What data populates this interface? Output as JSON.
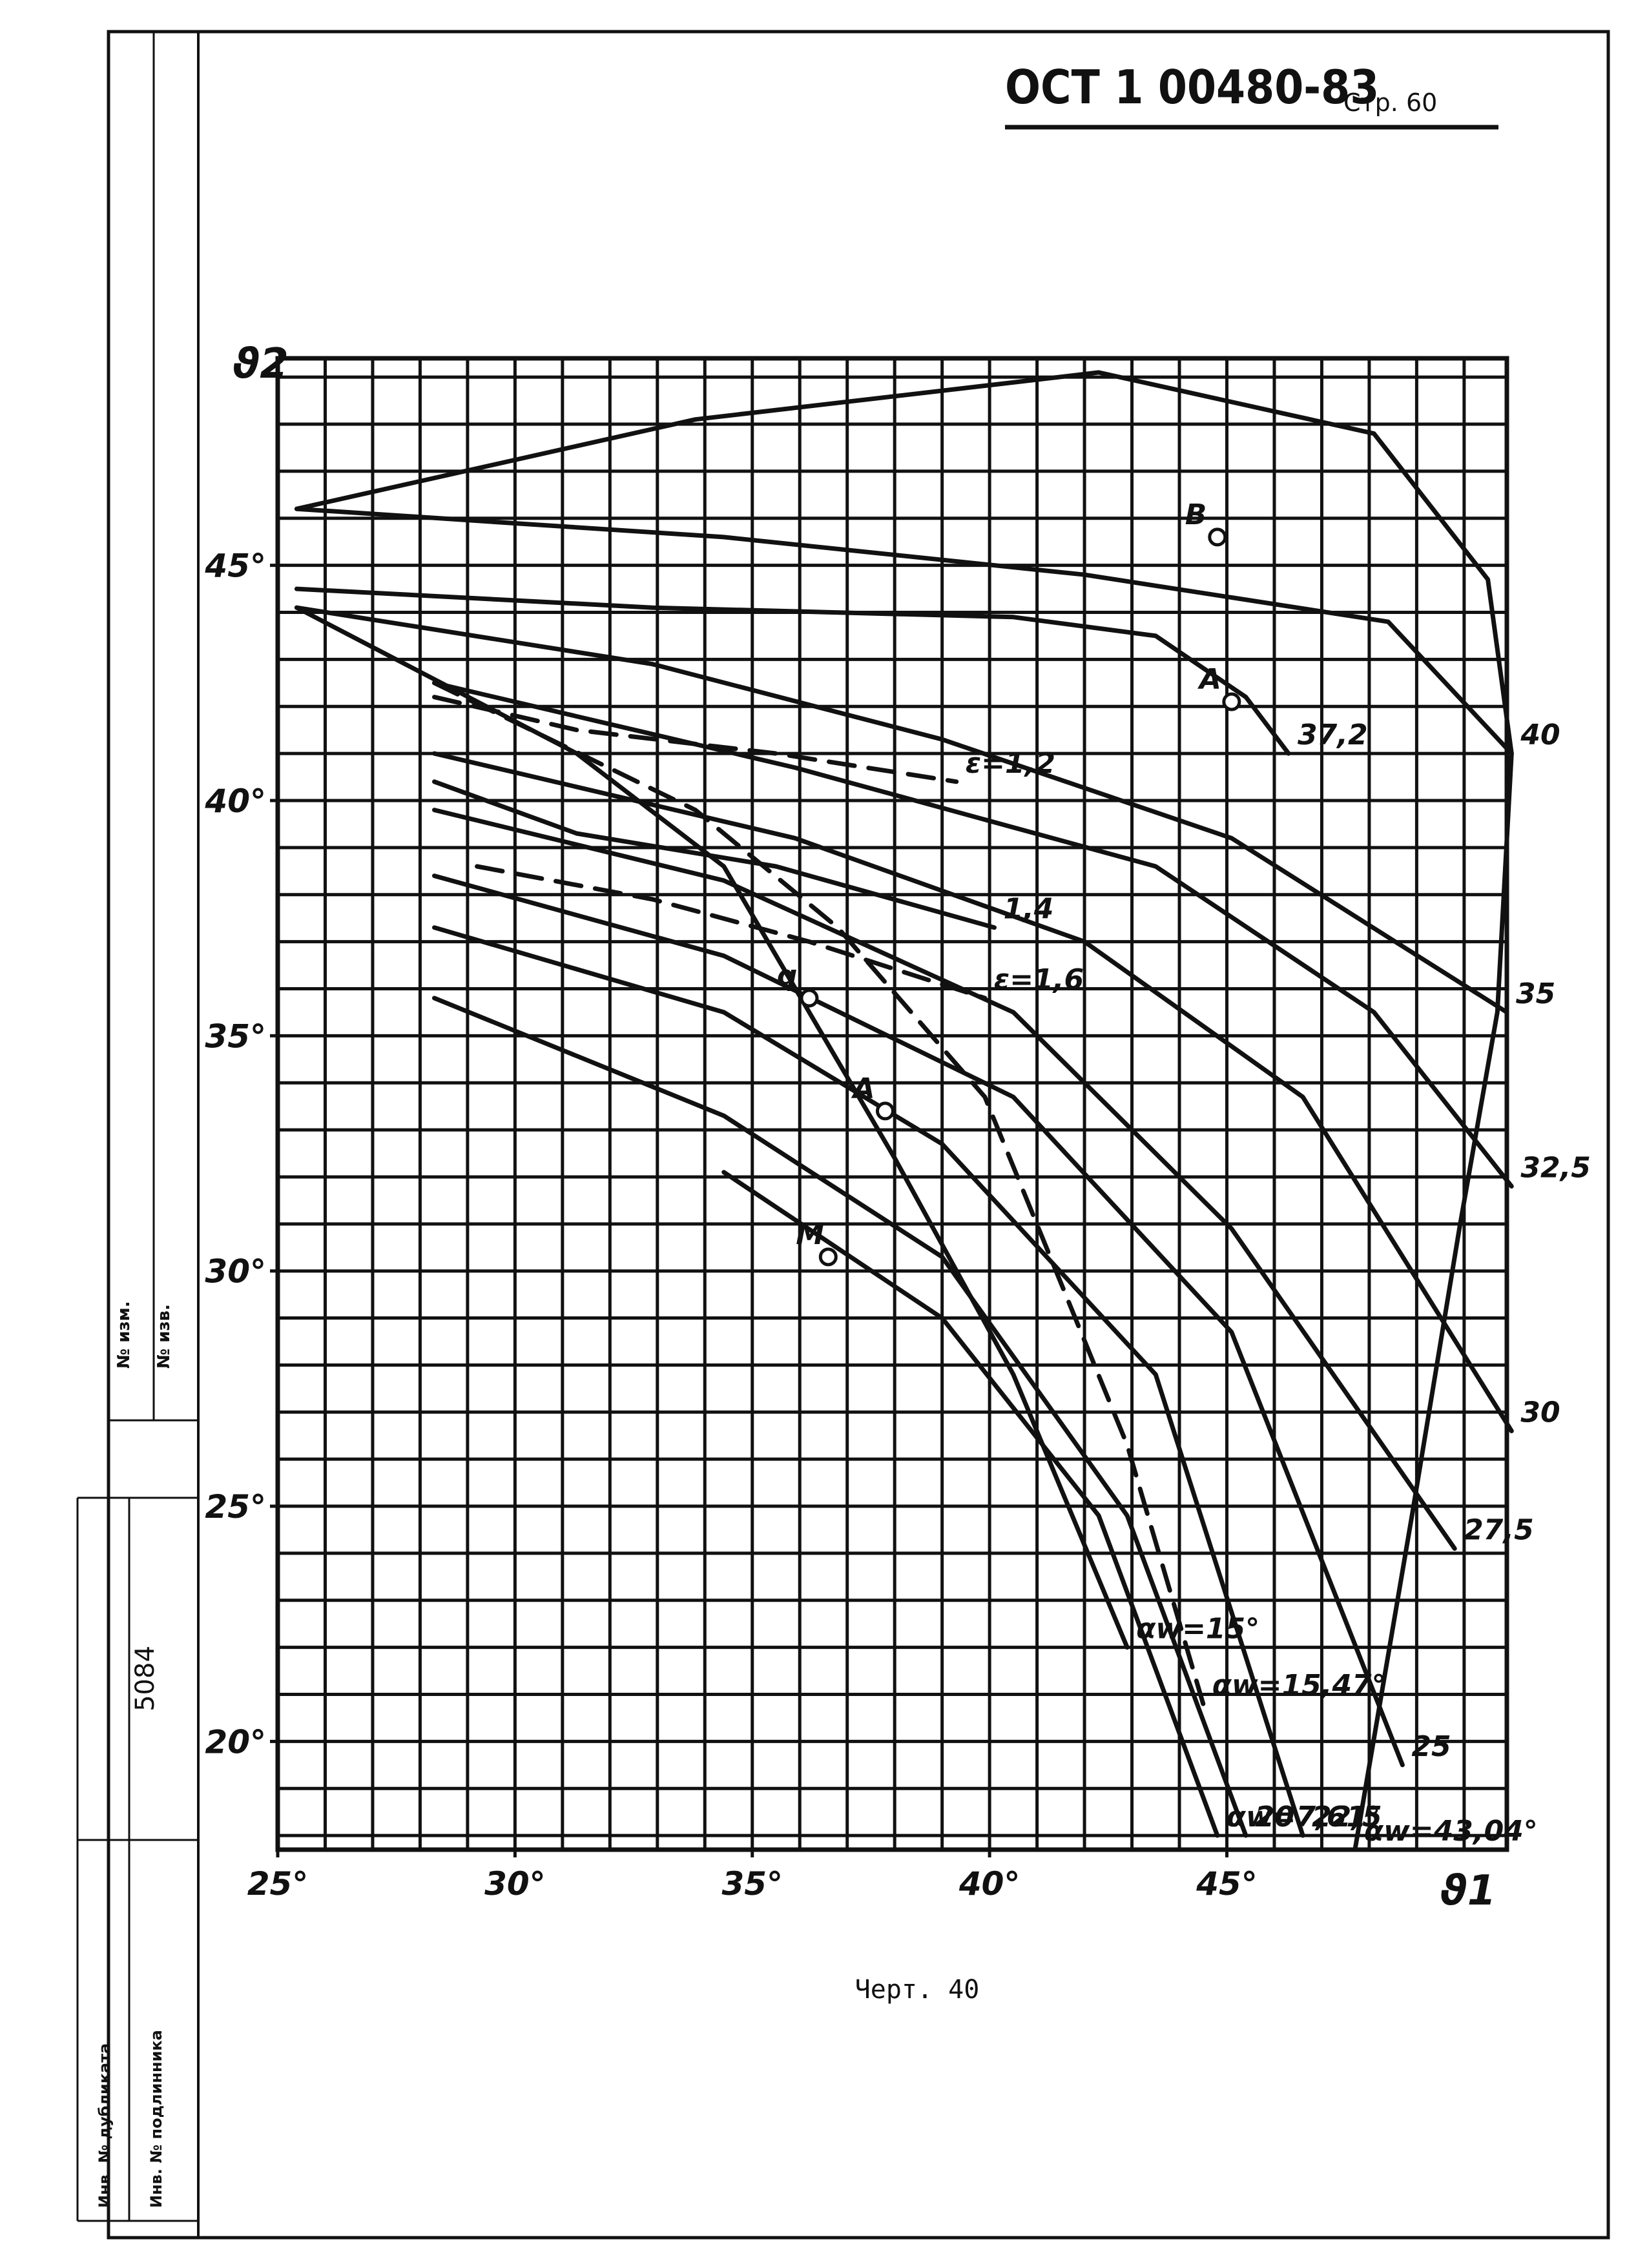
{
  "header": {
    "code": "ОСТ 1 00480-83",
    "page": "Стр. 60"
  },
  "caption": "Черт. 40",
  "sidebar": {
    "number": "5084",
    "cells": [
      "№ изм.",
      "№ изв.",
      "Инв. № дубликата",
      "Инв. № подлинника"
    ]
  },
  "chart_data": {
    "type": "line",
    "x_label": "ϑ1",
    "y_label": "ϑ2",
    "xlim": [
      25,
      50.9
    ],
    "ylim": [
      17.7,
      49.4
    ],
    "grid": true,
    "xticks": [
      {
        "value": 25,
        "label": "25°"
      },
      {
        "value": 30,
        "label": "30°"
      },
      {
        "value": 35,
        "label": "35°"
      },
      {
        "value": 40,
        "label": "40°"
      },
      {
        "value": 45,
        "label": "45°"
      }
    ],
    "yticks": [
      {
        "value": 20,
        "label": "20°"
      },
      {
        "value": 25,
        "label": "25°"
      },
      {
        "value": 30,
        "label": "30°"
      },
      {
        "value": 35,
        "label": "35°"
      },
      {
        "value": 40,
        "label": "40°"
      },
      {
        "value": 45,
        "label": "45°"
      }
    ],
    "series": [
      {
        "name": "αw=43,04°",
        "dashed": false,
        "x": [
          25.4,
          33.8,
          42.3,
          48.1,
          50.5,
          51.0,
          50.7,
          49.9,
          48.9,
          47.7
        ],
        "y": [
          46.2,
          48.1,
          49.1,
          47.8,
          44.7,
          41.0,
          35.5,
          30.9,
          24.8,
          17.7
        ]
      },
      {
        "name": "40",
        "dashed": false,
        "x": [
          25.4,
          34.4,
          42.0,
          48.4,
          51.0
        ],
        "y": [
          46.2,
          45.6,
          44.8,
          43.8,
          41.0
        ]
      },
      {
        "name": "37,2",
        "dashed": false,
        "x": [
          25.4,
          32.9,
          40.5,
          43.5,
          45.4,
          46.3
        ],
        "y": [
          44.5,
          44.1,
          43.9,
          43.5,
          42.2,
          41.0
        ]
      },
      {
        "name": "35",
        "dashed": false,
        "x": [
          25.4,
          32.9,
          39.0,
          45.1,
          50.9
        ],
        "y": [
          44.1,
          42.9,
          41.3,
          39.2,
          35.5
        ]
      },
      {
        "name": "32,5",
        "dashed": false,
        "x": [
          28.3,
          35.9,
          43.5,
          48.1,
          51.0
        ],
        "y": [
          42.5,
          40.7,
          38.6,
          35.5,
          31.8
        ]
      },
      {
        "name": "30",
        "dashed": false,
        "x": [
          28.3,
          35.9,
          42.0,
          46.6,
          51.0
        ],
        "y": [
          41.0,
          39.2,
          37.0,
          33.7,
          26.6
        ]
      },
      {
        "name": "27,5",
        "dashed": false,
        "x": [
          28.3,
          34.4,
          40.5,
          45.1,
          49.8
        ],
        "y": [
          39.8,
          38.3,
          35.5,
          30.9,
          24.1
        ]
      },
      {
        "name": "25",
        "dashed": false,
        "x": [
          28.3,
          34.4,
          40.5,
          45.1,
          48.7
        ],
        "y": [
          38.4,
          36.7,
          33.7,
          28.7,
          19.5
        ]
      },
      {
        "name": "22,5",
        "dashed": false,
        "x": [
          28.3,
          34.4,
          39.0,
          43.5,
          46.6
        ],
        "y": [
          37.3,
          35.5,
          32.7,
          27.8,
          18.0
        ]
      },
      {
        "name": "20",
        "dashed": false,
        "x": [
          28.3,
          34.4,
          39.0,
          42.9,
          45.4
        ],
        "y": [
          35.8,
          33.3,
          30.3,
          24.8,
          18.0
        ]
      },
      {
        "name": "αw=7,61°",
        "dashed": false,
        "x": [
          34.4,
          39.0,
          42.3,
          44.8
        ],
        "y": [
          32.1,
          29.0,
          24.8,
          18.0
        ]
      },
      {
        "name": "αw=15°",
        "dashed": false,
        "x": [
          25.4,
          31.3,
          34.4,
          36.2,
          38.0,
          40.5,
          42.9
        ],
        "y": [
          44.1,
          41.0,
          38.6,
          35.5,
          32.4,
          27.8,
          22.0
        ]
      },
      {
        "name": "αw=15,47°",
        "dashed": true,
        "x": [
          28.3,
          33.8,
          36.8,
          39.9,
          42.9,
          44.5
        ],
        "y": [
          42.5,
          39.8,
          37.3,
          33.7,
          26.3,
          20.8
        ]
      },
      {
        "name": "ε=1,2",
        "dashed": true,
        "x": [
          28.3,
          31.3,
          35.5,
          39.3
        ],
        "y": [
          42.2,
          41.5,
          41.0,
          40.4
        ]
      },
      {
        "name": "1,4",
        "dashed": false,
        "x": [
          28.3,
          31.3,
          35.5,
          40.1
        ],
        "y": [
          40.4,
          39.3,
          38.6,
          37.3
        ]
      },
      {
        "name": "ε=1,6",
        "dashed": true,
        "x": [
          29.2,
          32.9,
          36.2,
          39.9
        ],
        "y": [
          38.6,
          37.9,
          37.0,
          35.8
        ]
      }
    ],
    "points": [
      {
        "label": "B",
        "x": 44.8,
        "y": 45.6
      },
      {
        "label": "A",
        "x": 45.1,
        "y": 42.1
      },
      {
        "label": "A",
        "x": 37.8,
        "y": 33.4
      },
      {
        "label": "q",
        "x": 36.2,
        "y": 35.8
      },
      {
        "label": "M",
        "x": 36.6,
        "y": 30.3
      }
    ]
  }
}
